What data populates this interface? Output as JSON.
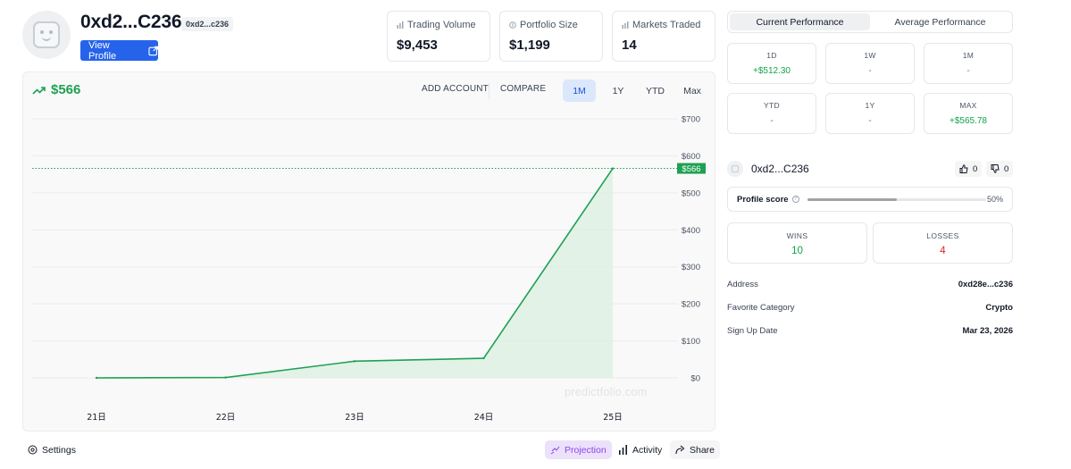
{
  "profile": {
    "name": "0xd2...C236",
    "address_chip": "0xd2...c236",
    "view_profile_label": "View Profile"
  },
  "stats": [
    {
      "label": "Trading Volume",
      "value": "$9,453",
      "icon": "bar-chart-icon"
    },
    {
      "label": "Portfolio Size",
      "value": "$1,199",
      "icon": "wallet-icon"
    },
    {
      "label": "Markets Traded",
      "value": "14",
      "icon": "bar-chart-icon"
    }
  ],
  "chart": {
    "current_value": "$566",
    "add_account_label": "ADD ACCOUNT",
    "compare_label": "COMPARE",
    "ranges": [
      "1M",
      "1Y",
      "YTD",
      "Max"
    ],
    "active_range": "1M",
    "watermark": "predictfolio.com",
    "current_marker_label": "$566"
  },
  "chart_data": {
    "type": "area",
    "x": [
      "21日",
      "22日",
      "23日",
      "24日",
      "25日"
    ],
    "values": [
      0,
      1,
      45,
      53,
      566
    ],
    "ylim": [
      0,
      700
    ],
    "y_ticks": [
      "$0",
      "$100",
      "$200",
      "$300",
      "$400",
      "$500",
      "$600",
      "$700"
    ],
    "current_value": 566,
    "grid": true,
    "line_color": "#1ea153",
    "fill_color": "#d8f0e0"
  },
  "bottom_bar": {
    "settings_label": "Settings",
    "projection_label": "Projection",
    "activity_label": "Activity",
    "share_label": "Share"
  },
  "performance": {
    "tabs": [
      "Current Performance",
      "Average Performance"
    ],
    "active_tab": "Current Performance",
    "cards": [
      {
        "period": "1D",
        "value": "+$512.30",
        "positive": true
      },
      {
        "period": "1W",
        "value": "-",
        "positive": false
      },
      {
        "period": "1M",
        "value": "-",
        "positive": false
      },
      {
        "period": "YTD",
        "value": "-",
        "positive": false
      },
      {
        "period": "1Y",
        "value": "-",
        "positive": false
      },
      {
        "period": "MAX",
        "value": "+$565.78",
        "positive": true
      }
    ]
  },
  "identity": {
    "name": "0xd2...C236",
    "upvotes": "0",
    "downvotes": "0"
  },
  "profile_score": {
    "label": "Profile score",
    "percent_text": "50%",
    "fraction": 0.5
  },
  "record": {
    "wins_label": "WINS",
    "wins": "10",
    "losses_label": "LOSSES",
    "losses": "4"
  },
  "details": [
    {
      "label": "Address",
      "value": "0xd28e...c236"
    },
    {
      "label": "Favorite Category",
      "value": "Crypto"
    },
    {
      "label": "Sign Up Date",
      "value": "Mar 23, 2026"
    }
  ],
  "colors": {
    "accent_blue": "#2563eb",
    "positive_green": "#16a34a",
    "negative_red": "#dc2626",
    "projection_purple": "#8b45e6"
  }
}
